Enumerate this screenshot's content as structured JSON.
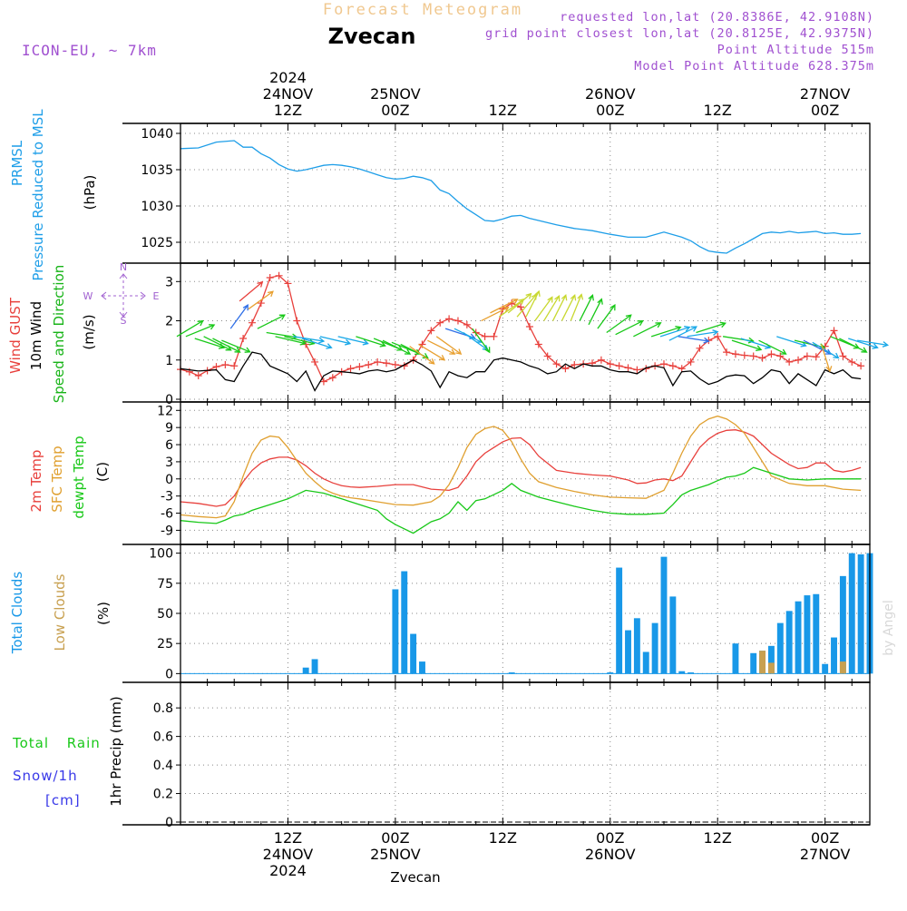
{
  "header": {
    "product": "Forecast Meteogram",
    "station": "Zvecan",
    "model": "ICON-EU, ~ 7km",
    "requested": "requested lon,lat (20.8386E, 42.9108N)",
    "grid_point": "grid point closest lon,lat (20.8125E, 42.9375N)",
    "point_alt": "Point Altitude 515m",
    "model_alt": "Model Point Altitude 628.375m"
  },
  "footer": {
    "station": "Zvecan",
    "credit": "by Angel"
  },
  "colors": {
    "prmsl": "#1e9ee8",
    "gust": "#e8403c",
    "wind10": "#000000",
    "wind_dir_label": "#18b418",
    "t2m": "#e8403c",
    "sfc": "#e0a030",
    "dewpt": "#18c818",
    "total_clouds": "#1898e8",
    "low_clouds": "#c8a050",
    "rain": "#18c818",
    "snow": "#3838e8",
    "compass": "#a060d0",
    "header_info": "#a050d0"
  },
  "time_axis": {
    "top_labels": [
      {
        "x": 12,
        "lines": [
          "2024",
          "24NOV",
          "12Z"
        ]
      },
      {
        "x": 24,
        "lines": [
          "25NOV",
          "00Z"
        ]
      },
      {
        "x": 36,
        "lines": [
          "12Z"
        ]
      },
      {
        "x": 48,
        "lines": [
          "26NOV",
          "00Z"
        ]
      },
      {
        "x": 60,
        "lines": [
          "12Z"
        ]
      },
      {
        "x": 72,
        "lines": [
          "27NOV",
          "00Z"
        ]
      }
    ],
    "bottom_labels": [
      {
        "x": 12,
        "lines": [
          "12Z",
          "24NOV",
          "2024"
        ]
      },
      {
        "x": 24,
        "lines": [
          "00Z",
          "25NOV"
        ]
      },
      {
        "x": 36,
        "lines": [
          "12Z"
        ]
      },
      {
        "x": 48,
        "lines": [
          "00Z",
          "26NOV"
        ]
      },
      {
        "x": 60,
        "lines": [
          "12Z"
        ]
      },
      {
        "x": 72,
        "lines": [
          "00Z",
          "27NOV"
        ]
      }
    ],
    "xlim": [
      0,
      77
    ],
    "note": "x = hours from 24NOV 00Z"
  },
  "chart_data": [
    {
      "type": "line",
      "panel": "pressure",
      "ylabels": [
        "PRMSL",
        "Pressure Reduced to MSL",
        "(hPa)"
      ],
      "ylim": [
        1022.5,
        1041
      ],
      "yticks": [
        1025,
        1030,
        1035,
        1040
      ],
      "series": [
        {
          "name": "PRMSL",
          "color": "#1e9ee8",
          "x": [
            0,
            2,
            4,
            6,
            7,
            8,
            9,
            10,
            11,
            12,
            13,
            14,
            15,
            16,
            17,
            18,
            19,
            20,
            21,
            22,
            23,
            24,
            25,
            26,
            27,
            28,
            29,
            30,
            31,
            32,
            33,
            34,
            35,
            36,
            37,
            38,
            39,
            40,
            42,
            44,
            46,
            48,
            50,
            52,
            54,
            56,
            57,
            58,
            59,
            60,
            61,
            62,
            63,
            64,
            65,
            66,
            67,
            68,
            69,
            70,
            71,
            72,
            73,
            74,
            75,
            76
          ],
          "y": [
            1037.9,
            1038.0,
            1038.8,
            1039.0,
            1038.1,
            1038.1,
            1037.2,
            1036.6,
            1035.7,
            1035.1,
            1034.8,
            1035.0,
            1035.3,
            1035.6,
            1035.7,
            1035.6,
            1035.4,
            1035.1,
            1034.7,
            1034.3,
            1033.9,
            1033.7,
            1033.8,
            1034.1,
            1033.9,
            1033.5,
            1032.2,
            1031.7,
            1030.6,
            1029.6,
            1028.8,
            1028.0,
            1027.9,
            1028.2,
            1028.6,
            1028.7,
            1028.3,
            1028.0,
            1027.4,
            1026.9,
            1026.6,
            1026.1,
            1025.7,
            1025.7,
            1026.4,
            1025.7,
            1025.2,
            1024.4,
            1023.8,
            1023.6,
            1023.5,
            1024.2,
            1024.8,
            1025.5,
            1026.2,
            1026.4,
            1026.3,
            1026.5,
            1026.3,
            1026.4,
            1026.5,
            1026.2,
            1026.3,
            1026.1,
            1026.1,
            1026.2
          ]
        }
      ]
    },
    {
      "type": "line",
      "panel": "wind",
      "ylabels": [
        "Wind GUST",
        "10m Wind",
        "Speed and Direction",
        "(m/s)"
      ],
      "ylim": [
        0,
        3.4
      ],
      "yticks": [
        0,
        1,
        2,
        3
      ],
      "series": [
        {
          "name": "Wind GUST",
          "color": "#e8403c",
          "marker": "+",
          "x": [
            0,
            1,
            2,
            3,
            4,
            5,
            6,
            7,
            8,
            9,
            10,
            11,
            12,
            13,
            14,
            15,
            16,
            17,
            18,
            19,
            20,
            21,
            22,
            23,
            24,
            25,
            26,
            27,
            28,
            29,
            30,
            31,
            32,
            33,
            34,
            35,
            36,
            37,
            38,
            39,
            40,
            41,
            42,
            43,
            44,
            45,
            46,
            47,
            48,
            49,
            50,
            51,
            52,
            53,
            54,
            55,
            56,
            57,
            58,
            59,
            60,
            61,
            62,
            63,
            64,
            65,
            66,
            67,
            68,
            69,
            70,
            71,
            72,
            73,
            74,
            75,
            76
          ],
          "y": [
            0.76,
            0.7,
            0.6,
            0.73,
            0.83,
            0.88,
            0.85,
            1.55,
            1.95,
            2.45,
            3.1,
            3.15,
            2.95,
            2.0,
            1.4,
            0.95,
            0.45,
            0.55,
            0.7,
            0.78,
            0.83,
            0.88,
            0.95,
            0.92,
            0.88,
            0.85,
            1.0,
            1.4,
            1.75,
            1.95,
            2.05,
            2.0,
            1.9,
            1.7,
            1.6,
            1.6,
            2.3,
            2.45,
            2.35,
            1.85,
            1.4,
            1.1,
            0.9,
            0.78,
            0.88,
            0.9,
            0.92,
            1.0,
            0.9,
            0.85,
            0.8,
            0.75,
            0.78,
            0.85,
            0.9,
            0.85,
            0.78,
            0.95,
            1.3,
            1.5,
            1.6,
            1.2,
            1.15,
            1.12,
            1.1,
            1.05,
            1.15,
            1.1,
            0.95,
            1.0,
            1.1,
            1.08,
            1.35,
            1.75,
            1.1,
            0.95,
            0.85
          ]
        },
        {
          "name": "10m Wind",
          "color": "#000000",
          "x": [
            0,
            2,
            4,
            5,
            6,
            7,
            8,
            9,
            10,
            11,
            12,
            13,
            14,
            15,
            16,
            17,
            18,
            19,
            20,
            21,
            22,
            23,
            24,
            25,
            26,
            27,
            28,
            29,
            30,
            31,
            32,
            33,
            34,
            35,
            36,
            37,
            38,
            39,
            40,
            41,
            42,
            43,
            44,
            45,
            46,
            47,
            48,
            49,
            50,
            51,
            52,
            53,
            54,
            55,
            56,
            57,
            58,
            59,
            60,
            61,
            62,
            63,
            64,
            65,
            66,
            67,
            68,
            69,
            70,
            71,
            72,
            73,
            74,
            75,
            76
          ],
          "y": [
            0.78,
            0.72,
            0.75,
            0.5,
            0.45,
            0.85,
            1.2,
            1.15,
            0.85,
            0.75,
            0.65,
            0.45,
            0.72,
            0.22,
            0.6,
            0.72,
            0.7,
            0.68,
            0.65,
            0.72,
            0.75,
            0.7,
            0.75,
            0.88,
            1.0,
            0.88,
            0.72,
            0.3,
            0.7,
            0.6,
            0.55,
            0.7,
            0.7,
            1.0,
            1.05,
            1.0,
            0.95,
            0.85,
            0.78,
            0.65,
            0.7,
            0.9,
            0.78,
            0.9,
            0.85,
            0.85,
            0.75,
            0.7,
            0.7,
            0.65,
            0.8,
            0.85,
            0.8,
            0.35,
            0.7,
            0.72,
            0.52,
            0.38,
            0.45,
            0.58,
            0.62,
            0.6,
            0.4,
            0.55,
            0.75,
            0.7,
            0.4,
            0.65,
            0.5,
            0.35,
            0.75,
            0.65,
            0.75,
            0.55,
            0.52
          ]
        }
      ],
      "vectors_legend": {
        "N": "N",
        "S": "S",
        "W": "W",
        "E": "E"
      }
    },
    {
      "type": "line",
      "panel": "temperature",
      "ylabels": [
        "2m Temp",
        "SFC Temp",
        "dewpt Temp",
        "(C)"
      ],
      "ylim": [
        -11,
        13
      ],
      "yticks": [
        -9,
        -6,
        -3,
        0,
        3,
        6,
        9,
        12
      ],
      "series": [
        {
          "name": "2m Temp",
          "color": "#e8403c",
          "x": [
            0,
            2,
            4,
            5,
            6,
            7,
            8,
            9,
            10,
            11,
            12,
            13,
            14,
            15,
            16,
            17,
            18,
            19,
            20,
            22,
            24,
            26,
            28,
            30,
            31,
            32,
            33,
            34,
            35,
            36,
            37,
            38,
            39,
            40,
            42,
            44,
            46,
            48,
            50,
            51,
            52,
            53,
            54,
            55,
            56,
            57,
            58,
            59,
            60,
            61,
            62,
            63,
            64,
            65,
            66,
            67,
            68,
            69,
            70,
            71,
            72,
            73,
            74,
            75,
            76
          ],
          "y": [
            -4.0,
            -4.3,
            -4.8,
            -4.5,
            -3.0,
            -0.5,
            1.5,
            2.8,
            3.5,
            3.8,
            3.8,
            3.3,
            2.3,
            1.0,
            0.0,
            -0.7,
            -1.2,
            -1.4,
            -1.5,
            -1.3,
            -1.0,
            -1.0,
            -1.8,
            -2.0,
            -1.5,
            0.5,
            3.0,
            4.5,
            5.5,
            6.5,
            7.1,
            7.2,
            6.0,
            4.0,
            1.5,
            1.0,
            0.7,
            0.5,
            -0.2,
            -0.8,
            -0.7,
            -0.2,
            0.0,
            -0.3,
            0.5,
            3.0,
            5.5,
            7.0,
            8.0,
            8.5,
            8.6,
            8.2,
            7.5,
            6.0,
            4.5,
            3.5,
            2.5,
            1.8,
            2.0,
            2.8,
            2.8,
            1.5,
            1.2,
            1.5,
            2.0
          ]
        },
        {
          "name": "SFC Temp",
          "color": "#e0a030",
          "x": [
            0,
            2,
            4,
            5,
            6,
            7,
            8,
            9,
            10,
            11,
            12,
            13,
            14,
            15,
            16,
            17,
            18,
            19,
            20,
            22,
            24,
            26,
            28,
            29,
            30,
            31,
            32,
            33,
            34,
            35,
            36,
            37,
            38,
            39,
            40,
            42,
            44,
            46,
            48,
            50,
            52,
            54,
            55,
            56,
            57,
            58,
            59,
            60,
            61,
            62,
            63,
            64,
            65,
            66,
            68,
            70,
            72,
            74,
            76
          ],
          "y": [
            -6.3,
            -6.6,
            -6.8,
            -6.5,
            -4.0,
            0.5,
            4.5,
            6.8,
            7.5,
            7.3,
            5.5,
            3.2,
            1.0,
            -0.5,
            -1.8,
            -2.5,
            -3.0,
            -3.3,
            -3.5,
            -4.0,
            -4.5,
            -4.6,
            -4.0,
            -3.0,
            -1.0,
            2.0,
            5.5,
            7.8,
            8.8,
            9.2,
            8.5,
            6.5,
            3.5,
            1.0,
            -0.5,
            -1.5,
            -2.2,
            -2.8,
            -3.2,
            -3.3,
            -3.4,
            -2.0,
            1.0,
            4.5,
            7.5,
            9.5,
            10.5,
            11.0,
            10.5,
            9.5,
            8.0,
            5.5,
            3.0,
            0.5,
            -0.8,
            -1.2,
            -1.2,
            -1.8,
            -2.0
          ]
        },
        {
          "name": "dewpt Temp",
          "color": "#18c818",
          "x": [
            0,
            2,
            4,
            5,
            6,
            7,
            8,
            10,
            12,
            14,
            16,
            18,
            20,
            22,
            23,
            24,
            26,
            27,
            28,
            29,
            30,
            31,
            32,
            33,
            34,
            36,
            37,
            38,
            40,
            42,
            44,
            46,
            48,
            50,
            52,
            54,
            55,
            56,
            57,
            58,
            59,
            60,
            61,
            62,
            63,
            64,
            65,
            66,
            68,
            70,
            72,
            74,
            76
          ],
          "y": [
            -7.3,
            -7.6,
            -7.8,
            -7.2,
            -6.5,
            -6.2,
            -5.5,
            -4.5,
            -3.5,
            -2.0,
            -2.5,
            -3.5,
            -4.5,
            -5.5,
            -7.0,
            -8.0,
            -9.5,
            -8.5,
            -7.5,
            -7.0,
            -6.0,
            -4.0,
            -5.5,
            -3.8,
            -3.5,
            -2.0,
            -0.8,
            -2.0,
            -3.2,
            -4.0,
            -4.8,
            -5.5,
            -6.0,
            -6.2,
            -6.2,
            -6.0,
            -4.5,
            -2.8,
            -2.0,
            -1.5,
            -1.0,
            -0.3,
            0.3,
            0.5,
            1.0,
            2.0,
            1.5,
            1.0,
            0.0,
            -0.2,
            0.0,
            0.0,
            0.0
          ]
        }
      ]
    },
    {
      "type": "bar",
      "panel": "clouds",
      "ylabels": [
        "Total Clouds",
        "Low Clouds",
        "(%)"
      ],
      "ylim": [
        -5,
        105
      ],
      "yticks": [
        0,
        25,
        50,
        75,
        100
      ],
      "series": [
        {
          "name": "Total Clouds",
          "color": "#1898e8",
          "x": [
            14,
            15,
            24,
            25,
            26,
            27,
            37,
            48,
            49,
            50,
            51,
            52,
            53,
            54,
            55,
            56,
            57,
            62,
            64,
            65,
            66,
            67,
            68,
            69,
            70,
            71,
            72,
            73,
            74,
            75,
            76,
            77
          ],
          "y": [
            5,
            12,
            70,
            85,
            33,
            10,
            1,
            1,
            88,
            36,
            46,
            18,
            42,
            97,
            64,
            2,
            1,
            25,
            17,
            19,
            23,
            42,
            52,
            60,
            65,
            66,
            8,
            30,
            81,
            100,
            99,
            100
          ]
        },
        {
          "name": "Low Clouds",
          "color": "#c8a050",
          "x": [
            65,
            66,
            74
          ],
          "y": [
            19,
            9,
            10
          ]
        }
      ]
    },
    {
      "type": "bar",
      "panel": "precip",
      "ylabels": [
        "Total Rain",
        "Snow/1h",
        "[cm]",
        "1hr Precip (mm)"
      ],
      "ylim": [
        0,
        0.96
      ],
      "yticks": [
        0,
        0.2,
        0.4,
        0.6,
        0.8
      ],
      "ytick_labels": [
        "0",
        "0.2",
        "0.4",
        "0.6",
        "0.8"
      ],
      "series": [
        {
          "name": "Total Rain",
          "color": "#18c818",
          "x": [],
          "y": []
        },
        {
          "name": "Snow/1h",
          "color": "#3838e8",
          "x": [],
          "y": []
        }
      ]
    }
  ]
}
